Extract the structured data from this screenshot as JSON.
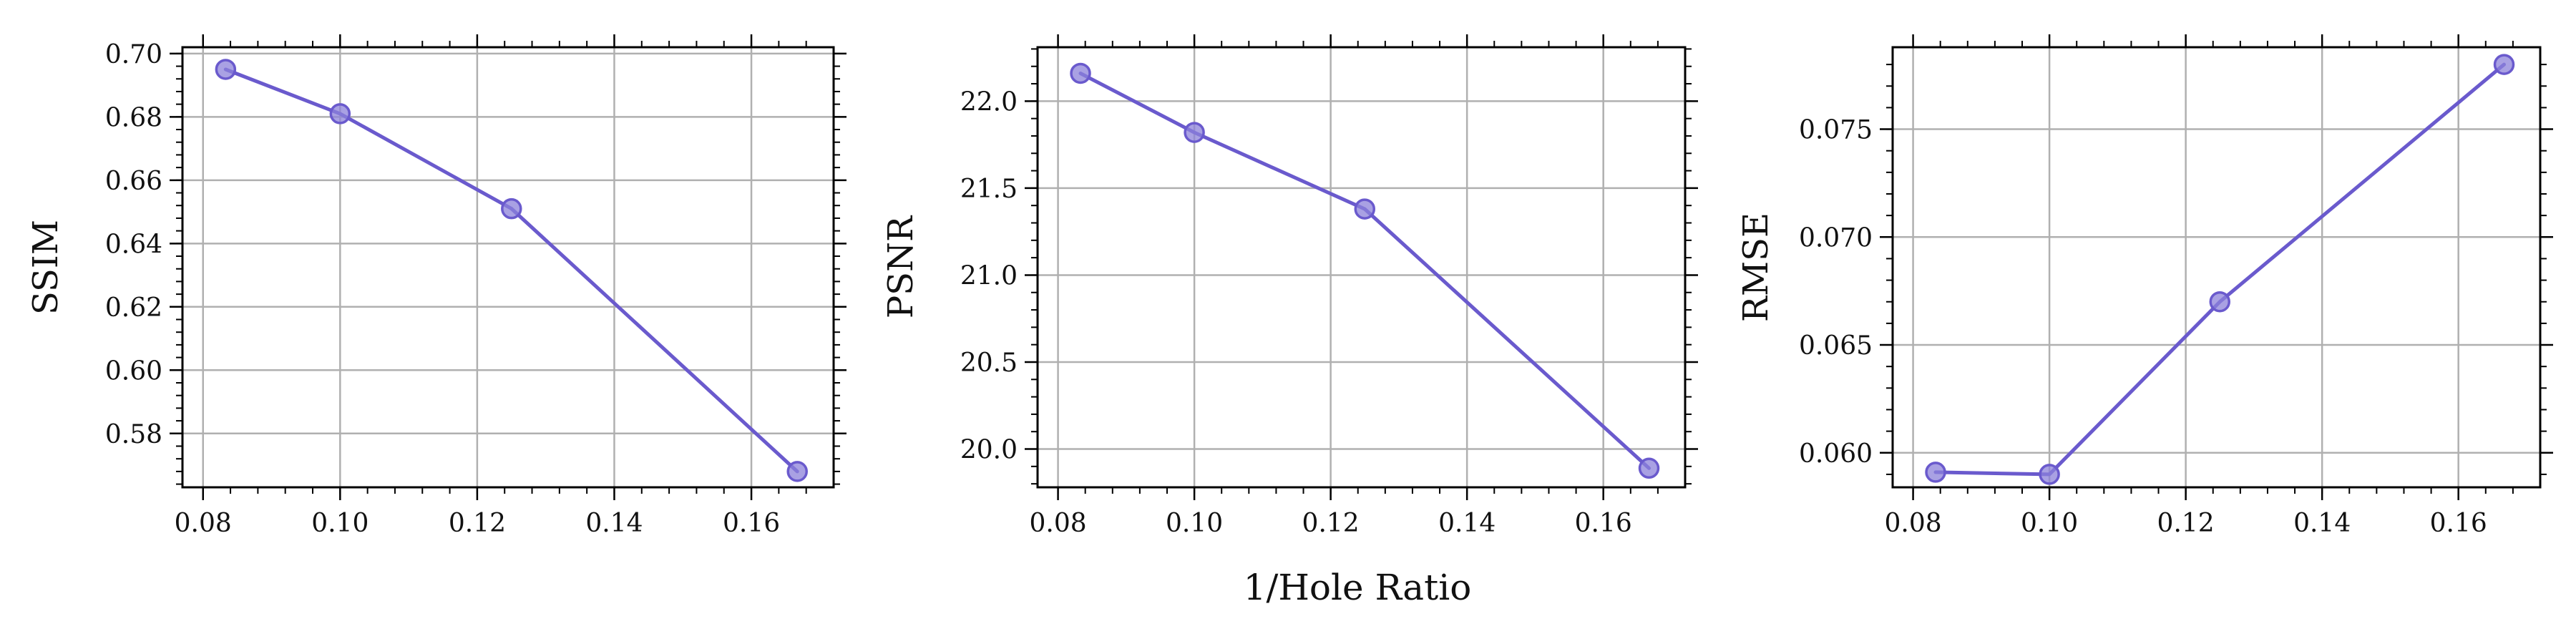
{
  "figure": {
    "shared_xlabel": "1/Hole Ratio"
  },
  "colors": {
    "line": "#6A5ACD",
    "marker_fill": "#8C82D9",
    "grid": "#b0b0b0",
    "axis": "#000000"
  },
  "chart_data": [
    {
      "type": "line",
      "title": "",
      "xlabel": "",
      "ylabel": "SSIM",
      "x": [
        0.0833,
        0.1,
        0.125,
        0.1667
      ],
      "series": [
        {
          "values": [
            0.695,
            0.681,
            0.651,
            0.568
          ]
        }
      ],
      "xlim": [
        0.077,
        0.172
      ],
      "ylim": [
        0.563,
        0.702
      ],
      "xticks": [
        0.08,
        0.1,
        0.12,
        0.14,
        0.16
      ],
      "xtick_labels": [
        "0.08",
        "0.10",
        "0.12",
        "0.14",
        "0.16"
      ],
      "yticks": [
        0.58,
        0.6,
        0.62,
        0.64,
        0.66,
        0.68,
        0.7
      ],
      "ytick_labels": [
        "0.58",
        "0.60",
        "0.62",
        "0.64",
        "0.66",
        "0.68",
        "0.70"
      ],
      "grid": true,
      "marker": "circle"
    },
    {
      "type": "line",
      "title": "",
      "xlabel": "",
      "ylabel": "PSNR",
      "x": [
        0.0833,
        0.1,
        0.125,
        0.1667
      ],
      "series": [
        {
          "values": [
            22.16,
            21.82,
            21.38,
            19.89
          ]
        }
      ],
      "xlim": [
        0.077,
        0.172
      ],
      "ylim": [
        19.78,
        22.31
      ],
      "xticks": [
        0.08,
        0.1,
        0.12,
        0.14,
        0.16
      ],
      "xtick_labels": [
        "0.08",
        "0.10",
        "0.12",
        "0.14",
        "0.16"
      ],
      "yticks": [
        20.0,
        20.5,
        21.0,
        21.5,
        22.0
      ],
      "ytick_labels": [
        "20.0",
        "20.5",
        "21.0",
        "21.5",
        "22.0"
      ],
      "grid": true,
      "marker": "circle"
    },
    {
      "type": "line",
      "title": "",
      "xlabel": "",
      "ylabel": "RMSE",
      "x": [
        0.0833,
        0.1,
        0.125,
        0.1667
      ],
      "series": [
        {
          "values": [
            0.0591,
            0.059,
            0.067,
            0.078
          ]
        }
      ],
      "xlim": [
        0.077,
        0.172
      ],
      "ylim": [
        0.0584,
        0.0788
      ],
      "xticks": [
        0.08,
        0.1,
        0.12,
        0.14,
        0.16
      ],
      "xtick_labels": [
        "0.08",
        "0.10",
        "0.12",
        "0.14",
        "0.16"
      ],
      "yticks": [
        0.06,
        0.065,
        0.07,
        0.075
      ],
      "ytick_labels": [
        "0.060",
        "0.065",
        "0.070",
        "0.075"
      ],
      "grid": true,
      "marker": "circle"
    }
  ]
}
